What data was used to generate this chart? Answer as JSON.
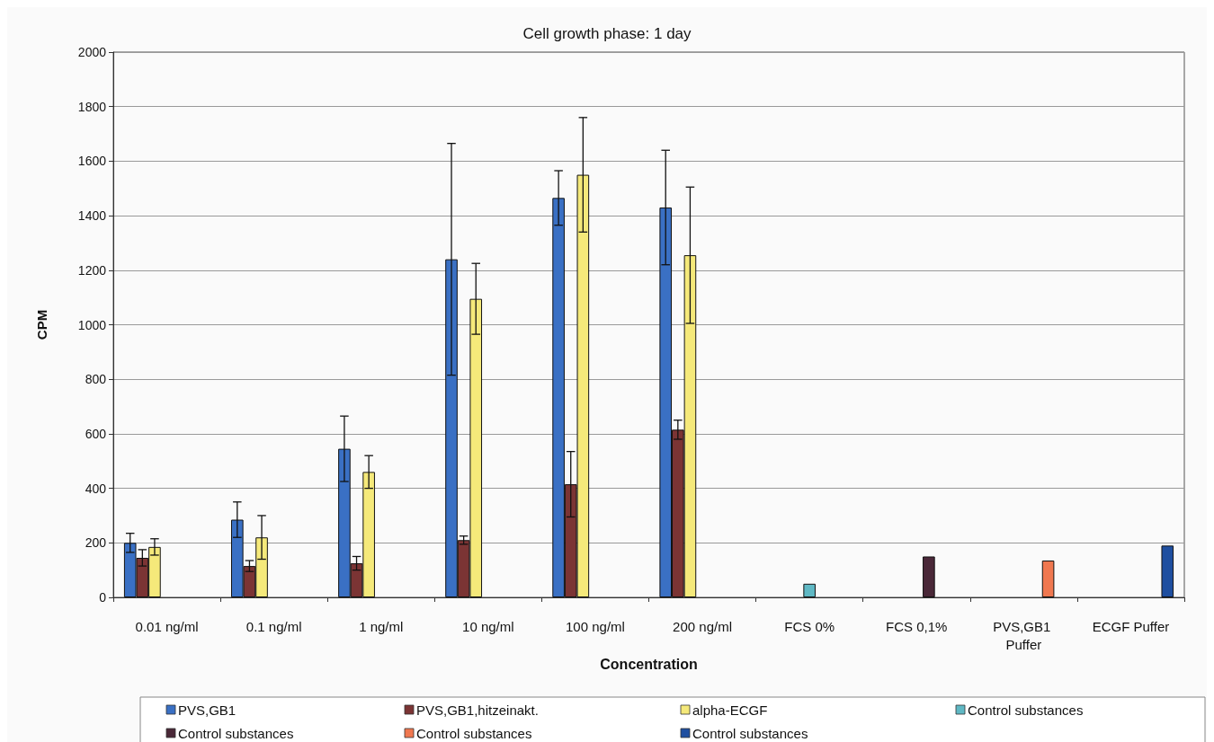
{
  "chart_data": {
    "type": "bar",
    "title": "Cell growth phase: 1 day",
    "xlabel": "Concentration",
    "ylabel": "CPM",
    "categories": [
      "0.01 ng/ml",
      "0.1 ng/ml",
      "1 ng/ml",
      "10 ng/ml",
      "100 ng/ml",
      "200 ng/ml",
      "FCS 0%",
      "FCS 0,1%",
      "PVS,GB1 Puffer",
      "ECGF Puffer"
    ],
    "series": [
      {
        "name": "PVS,GB1",
        "color": "#3a70c4",
        "values": [
          200,
          285,
          545,
          1240,
          1465,
          1430,
          null,
          null,
          null,
          null
        ],
        "errors": [
          35,
          65,
          120,
          425,
          100,
          210,
          null,
          null,
          null,
          null
        ]
      },
      {
        "name": "PVS,GB1,hitzeinakt.",
        "color": "#7b3434",
        "values": [
          145,
          115,
          125,
          210,
          415,
          615,
          null,
          null,
          null,
          null
        ],
        "errors": [
          30,
          20,
          25,
          15,
          120,
          35,
          null,
          null,
          null,
          null
        ]
      },
      {
        "name": "alpha-ECGF",
        "color": "#f5e97a",
        "values": [
          185,
          220,
          460,
          1095,
          1550,
          1255,
          null,
          null,
          null,
          null
        ],
        "errors": [
          30,
          80,
          60,
          130,
          210,
          250,
          null,
          null,
          null,
          null
        ]
      },
      {
        "name": "Control substances",
        "color": "#5fb8c4",
        "values": [
          null,
          null,
          null,
          null,
          null,
          null,
          50,
          null,
          null,
          null
        ]
      },
      {
        "name": "Control substances",
        "color": "#4a2838",
        "values": [
          null,
          null,
          null,
          null,
          null,
          null,
          null,
          150,
          null,
          null
        ]
      },
      {
        "name": "Control substances",
        "color": "#f07850",
        "values": [
          null,
          null,
          null,
          null,
          null,
          null,
          null,
          null,
          135,
          null
        ]
      },
      {
        "name": "Control substances",
        "color": "#1f4fa0",
        "values": [
          null,
          null,
          null,
          null,
          null,
          null,
          null,
          null,
          null,
          190
        ]
      }
    ],
    "ylim": [
      0,
      2000
    ],
    "yticks": [
      0,
      200,
      400,
      600,
      800,
      1000,
      1200,
      1400,
      1600,
      1800,
      2000
    ],
    "grid": "y",
    "legend": "bottom"
  }
}
